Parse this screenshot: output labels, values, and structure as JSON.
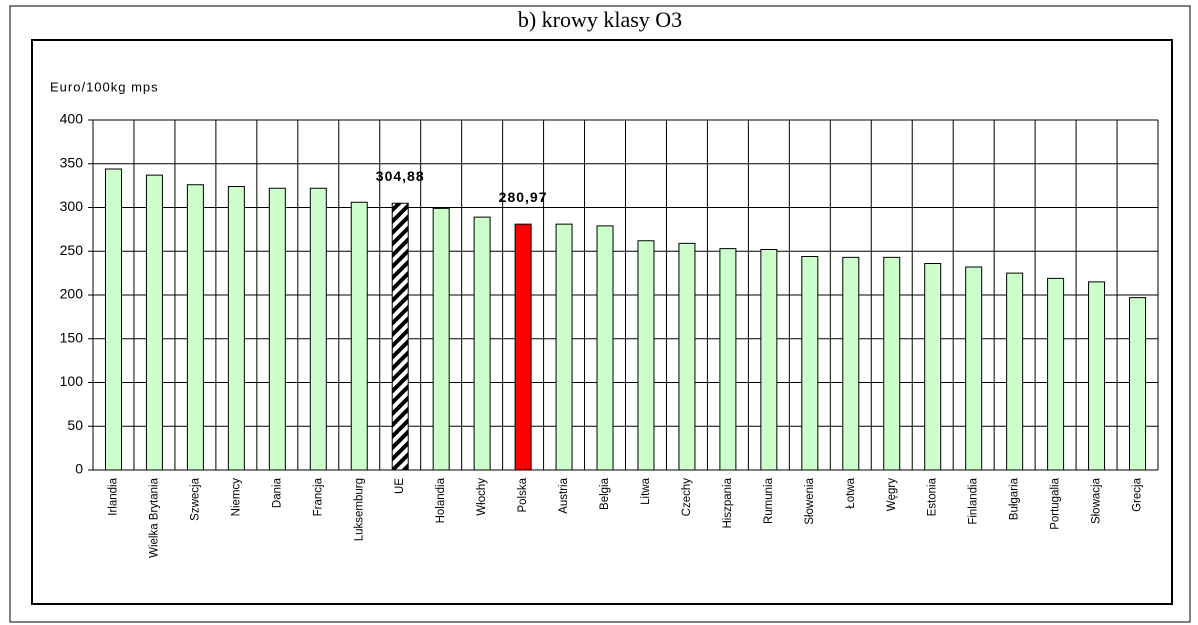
{
  "chart_data": {
    "type": "bar",
    "title": "b) krowy klasy O3",
    "y_label": "Euro/100kg mps",
    "categories": [
      "Irlandia",
      "Wielka Brytania",
      "Szwecja",
      "Niemcy",
      "Dania",
      "Francja",
      "Luksemburg",
      "UE",
      "Holandia",
      "Włochy",
      "Polska",
      "Austria",
      "Belgia",
      "Litwa",
      "Czechy",
      "Hiszpania",
      "Rumunia",
      "Słowenia",
      "Łotwa",
      "Węgry",
      "Estonia",
      "Finlandia",
      "Bułgaria",
      "Portugalia",
      "Słowacja",
      "Grecja"
    ],
    "values": [
      344,
      337,
      326,
      324,
      322,
      322,
      306,
      304.88,
      299,
      289,
      280.97,
      281,
      279,
      262,
      259,
      253,
      252,
      244,
      243,
      243,
      236,
      232,
      225,
      219,
      215,
      197
    ],
    "value_labels": [
      null,
      null,
      null,
      null,
      null,
      null,
      null,
      "304,88",
      null,
      null,
      "280,97",
      null,
      null,
      null,
      null,
      null,
      null,
      null,
      null,
      null,
      null,
      null,
      null,
      null,
      null,
      null
    ],
    "colors": [
      "#ccffcc",
      "#ccffcc",
      "#ccffcc",
      "#ccffcc",
      "#ccffcc",
      "#ccffcc",
      "#ccffcc",
      "hatch",
      "#ccffcc",
      "#ccffcc",
      "#ff0000",
      "#ccffcc",
      "#ccffcc",
      "#ccffcc",
      "#ccffcc",
      "#ccffcc",
      "#ccffcc",
      "#ccffcc",
      "#ccffcc",
      "#ccffcc",
      "#ccffcc",
      "#ccffcc",
      "#ccffcc",
      "#ccffcc",
      "#ccffcc",
      "#ccffcc"
    ],
    "ylim": [
      0,
      400
    ],
    "yticks": [
      0,
      50,
      100,
      150,
      200,
      250,
      300,
      350,
      400
    ],
    "grid": true
  }
}
